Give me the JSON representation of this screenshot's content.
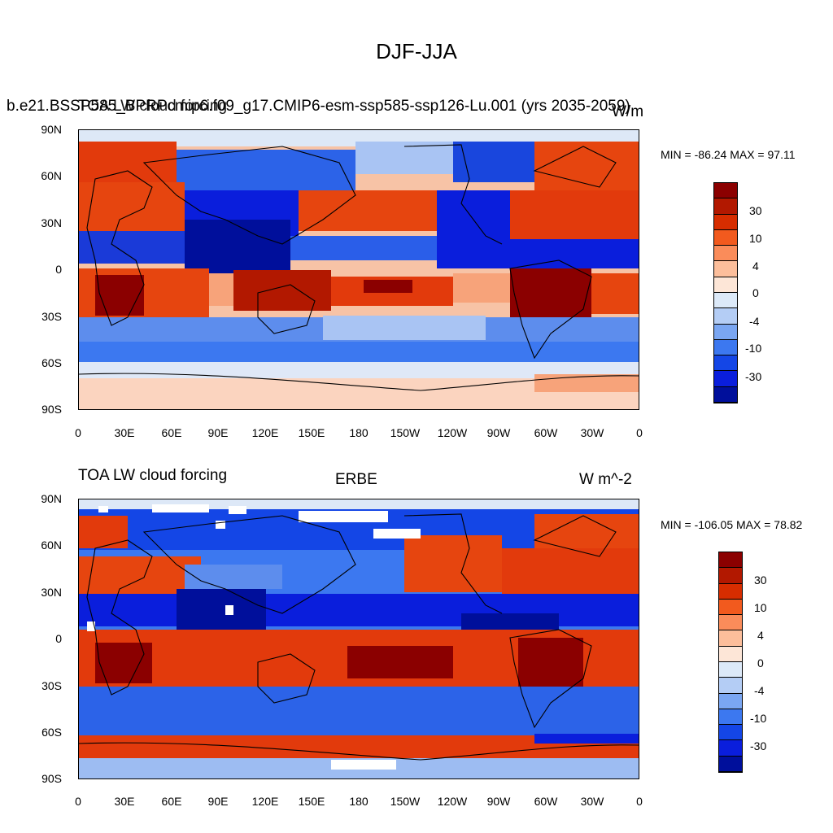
{
  "title": "DJF-JJA",
  "panels": [
    {
      "left_title": "b.e21.BSSP585_BPRPcmip6.f09_g17.CMIP6-esm-ssp585-ssp126-Lu.001 (yrs 2035-2059)",
      "overlay_left_title": "TOA LW cloud forcing",
      "units": "W/m",
      "min_max": "MIN = -86.24 MAX =  97.11"
    },
    {
      "left_title": "TOA LW cloud forcing",
      "center_title": "ERBE",
      "units": "W m^-2",
      "min_max": "MIN = -106.05 MAX =  78.82"
    }
  ],
  "lat_labels": [
    "90N",
    "60N",
    "30N",
    "0",
    "30S",
    "60S",
    "90S"
  ],
  "lon_labels": [
    "0",
    "30E",
    "60E",
    "90E",
    "120E",
    "150E",
    "180",
    "150W",
    "120W",
    "90W",
    "60W",
    "30W",
    "0"
  ],
  "colorbar": {
    "labels": [
      "30",
      "10",
      "4",
      "0",
      "-4",
      "-10",
      "-30"
    ],
    "colors": [
      "#8b0000",
      "#b21800",
      "#d72d00",
      "#f25a1e",
      "#fa8c5a",
      "#fcbe9b",
      "#fde6d7",
      "#dce9f8",
      "#b4cdf5",
      "#7aa6f2",
      "#3c78f0",
      "#1446e6",
      "#0a1edc",
      "#000f9b"
    ]
  },
  "colors": {
    "ocean_neutral": "#dfe9f7",
    "coast": "#000000"
  }
}
